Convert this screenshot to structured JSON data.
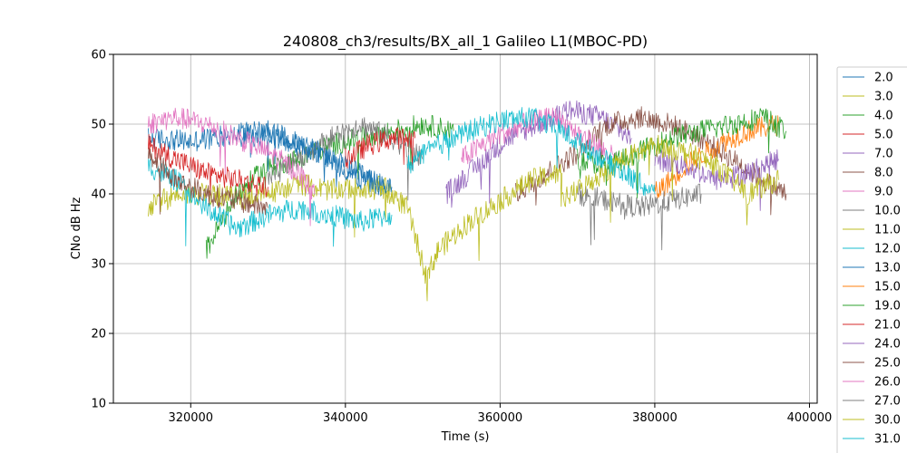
{
  "chart_data": {
    "type": "line",
    "title": "240808_ch3/results/BX_all_1 Galileo L1(MBOC-PD)",
    "xlabel": "Time (s)",
    "ylabel": "CNo dB Hz",
    "xlim": [
      310000,
      401000
    ],
    "ylim": [
      10,
      60
    ],
    "xticks": [
      "320000",
      "340000",
      "360000",
      "380000",
      "400000"
    ],
    "xtick_values": [
      320000,
      340000,
      360000,
      380000,
      400000
    ],
    "yticks": [
      "10",
      "20",
      "30",
      "40",
      "50",
      "60"
    ],
    "ytick_values": [
      10,
      20,
      30,
      40,
      50,
      60
    ],
    "grid": true,
    "legend_placement": "right-outside",
    "series": [
      {
        "name": "2.0",
        "color": "#1f77b4",
        "points": [
          [
            314500,
            48
          ],
          [
            320000,
            47.5
          ],
          [
            325000,
            48.5
          ],
          [
            330000,
            49
          ],
          [
            335000,
            47
          ],
          [
            340000,
            44
          ],
          [
            345000,
            41
          ]
        ]
      },
      {
        "name": "3.0",
        "color": "#bcbd22",
        "points": [
          [
            314500,
            38
          ],
          [
            318000,
            40
          ],
          [
            322000,
            40
          ],
          [
            326000,
            39.5
          ],
          [
            330000,
            40
          ],
          [
            334000,
            41.5
          ],
          [
            338000,
            40.5
          ],
          [
            342000,
            41
          ],
          [
            346000,
            40
          ]
        ]
      },
      {
        "name": "4.0",
        "color": "#2ca02c",
        "points": [
          [
            322000,
            32
          ],
          [
            326000,
            40
          ],
          [
            330000,
            44
          ],
          [
            334000,
            45
          ],
          [
            338000,
            47
          ],
          [
            342000,
            48
          ],
          [
            346000,
            49
          ],
          [
            350000,
            50
          ],
          [
            354000,
            49
          ]
        ]
      },
      {
        "name": "5.0",
        "color": "#d62728",
        "points": [
          [
            314500,
            47
          ],
          [
            318000,
            45
          ],
          [
            322000,
            43
          ],
          [
            326000,
            42
          ],
          [
            330000,
            41
          ]
        ]
      },
      {
        "name": "7.0",
        "color": "#9467bd",
        "points": [
          [
            353000,
            40
          ],
          [
            357000,
            44
          ],
          [
            361000,
            48
          ],
          [
            365000,
            50
          ],
          [
            369000,
            52
          ],
          [
            373000,
            51
          ],
          [
            377000,
            48
          ]
        ]
      },
      {
        "name": "8.0",
        "color": "#8c564b",
        "points": [
          [
            362000,
            40
          ],
          [
            366000,
            43
          ],
          [
            370000,
            46
          ],
          [
            374000,
            50
          ],
          [
            378000,
            51
          ],
          [
            382000,
            50
          ],
          [
            386000,
            48
          ],
          [
            390000,
            45
          ],
          [
            394000,
            42
          ],
          [
            397000,
            40
          ]
        ]
      },
      {
        "name": "9.0",
        "color": "#e377c2",
        "points": [
          [
            355000,
            45
          ],
          [
            359000,
            48
          ],
          [
            363000,
            50
          ],
          [
            367000,
            51
          ],
          [
            371000,
            48
          ],
          [
            375000,
            45
          ]
        ]
      },
      {
        "name": "10.0",
        "color": "#7f7f7f",
        "points": [
          [
            330000,
            42
          ],
          [
            334000,
            45
          ],
          [
            338000,
            48
          ],
          [
            342000,
            50
          ],
          [
            346000,
            48
          ],
          [
            350000,
            45
          ]
        ]
      },
      {
        "name": "11.0",
        "color": "#bcbd22",
        "points": [
          [
            344000,
            42
          ],
          [
            348000,
            38
          ],
          [
            350500,
            28
          ],
          [
            352000,
            32
          ],
          [
            356000,
            36
          ],
          [
            360000,
            39
          ],
          [
            364000,
            42
          ],
          [
            368000,
            43
          ]
        ]
      },
      {
        "name": "12.0",
        "color": "#17becf",
        "points": [
          [
            314500,
            44
          ],
          [
            318000,
            42
          ],
          [
            322000,
            38
          ],
          [
            326000,
            35
          ],
          [
            330000,
            37
          ],
          [
            334000,
            38
          ],
          [
            338000,
            37
          ],
          [
            342000,
            36
          ],
          [
            346000,
            37
          ]
        ]
      },
      {
        "name": "13.0",
        "color": "#1f77b4",
        "points": [
          [
            326000,
            48
          ],
          [
            330000,
            48.5
          ],
          [
            334000,
            47
          ],
          [
            338000,
            45
          ],
          [
            342000,
            42
          ],
          [
            346000,
            41
          ]
        ]
      },
      {
        "name": "15.0",
        "color": "#ff7f0e",
        "points": [
          [
            380000,
            40
          ],
          [
            384000,
            44
          ],
          [
            388000,
            47
          ],
          [
            392000,
            49
          ],
          [
            396000,
            50
          ]
        ]
      },
      {
        "name": "19.0",
        "color": "#2ca02c",
        "points": [
          [
            370000,
            45
          ],
          [
            374000,
            44
          ],
          [
            378000,
            46
          ],
          [
            382000,
            48
          ],
          [
            386000,
            49
          ],
          [
            390000,
            50
          ],
          [
            394000,
            51
          ],
          [
            397000,
            49
          ]
        ]
      },
      {
        "name": "21.0",
        "color": "#d62728",
        "points": [
          [
            340000,
            45
          ],
          [
            343000,
            47
          ],
          [
            346000,
            48
          ],
          [
            349000,
            48
          ]
        ]
      },
      {
        "name": "24.0",
        "color": "#9467bd",
        "points": [
          [
            380000,
            45
          ],
          [
            384000,
            44
          ],
          [
            388000,
            42
          ],
          [
            392000,
            43
          ],
          [
            396000,
            45
          ]
        ]
      },
      {
        "name": "25.0",
        "color": "#8c564b",
        "points": [
          [
            314500,
            46
          ],
          [
            318000,
            42
          ],
          [
            322000,
            40
          ],
          [
            326000,
            39
          ],
          [
            330000,
            38
          ]
        ]
      },
      {
        "name": "26.0",
        "color": "#e377c2",
        "points": [
          [
            314500,
            50
          ],
          [
            318000,
            51
          ],
          [
            322000,
            50
          ],
          [
            326000,
            48
          ],
          [
            330000,
            46
          ],
          [
            334000,
            43
          ],
          [
            336000,
            40
          ]
        ]
      },
      {
        "name": "27.0",
        "color": "#7f7f7f",
        "points": [
          [
            370000,
            40
          ],
          [
            374000,
            39
          ],
          [
            378000,
            38
          ],
          [
            382000,
            39
          ],
          [
            386000,
            40
          ]
        ]
      },
      {
        "name": "30.0",
        "color": "#bcbd22",
        "points": [
          [
            368000,
            39
          ],
          [
            372000,
            42
          ],
          [
            376000,
            45
          ],
          [
            380000,
            47
          ],
          [
            384000,
            46
          ],
          [
            388000,
            44
          ],
          [
            392000,
            40
          ],
          [
            396000,
            42
          ]
        ]
      },
      {
        "name": "31.0",
        "color": "#17becf",
        "points": [
          [
            348000,
            44
          ],
          [
            352000,
            47
          ],
          [
            356000,
            49
          ],
          [
            360000,
            50.5
          ],
          [
            364000,
            51
          ],
          [
            368000,
            49
          ],
          [
            372000,
            46
          ],
          [
            376000,
            43
          ],
          [
            380000,
            40
          ]
        ]
      }
    ]
  }
}
